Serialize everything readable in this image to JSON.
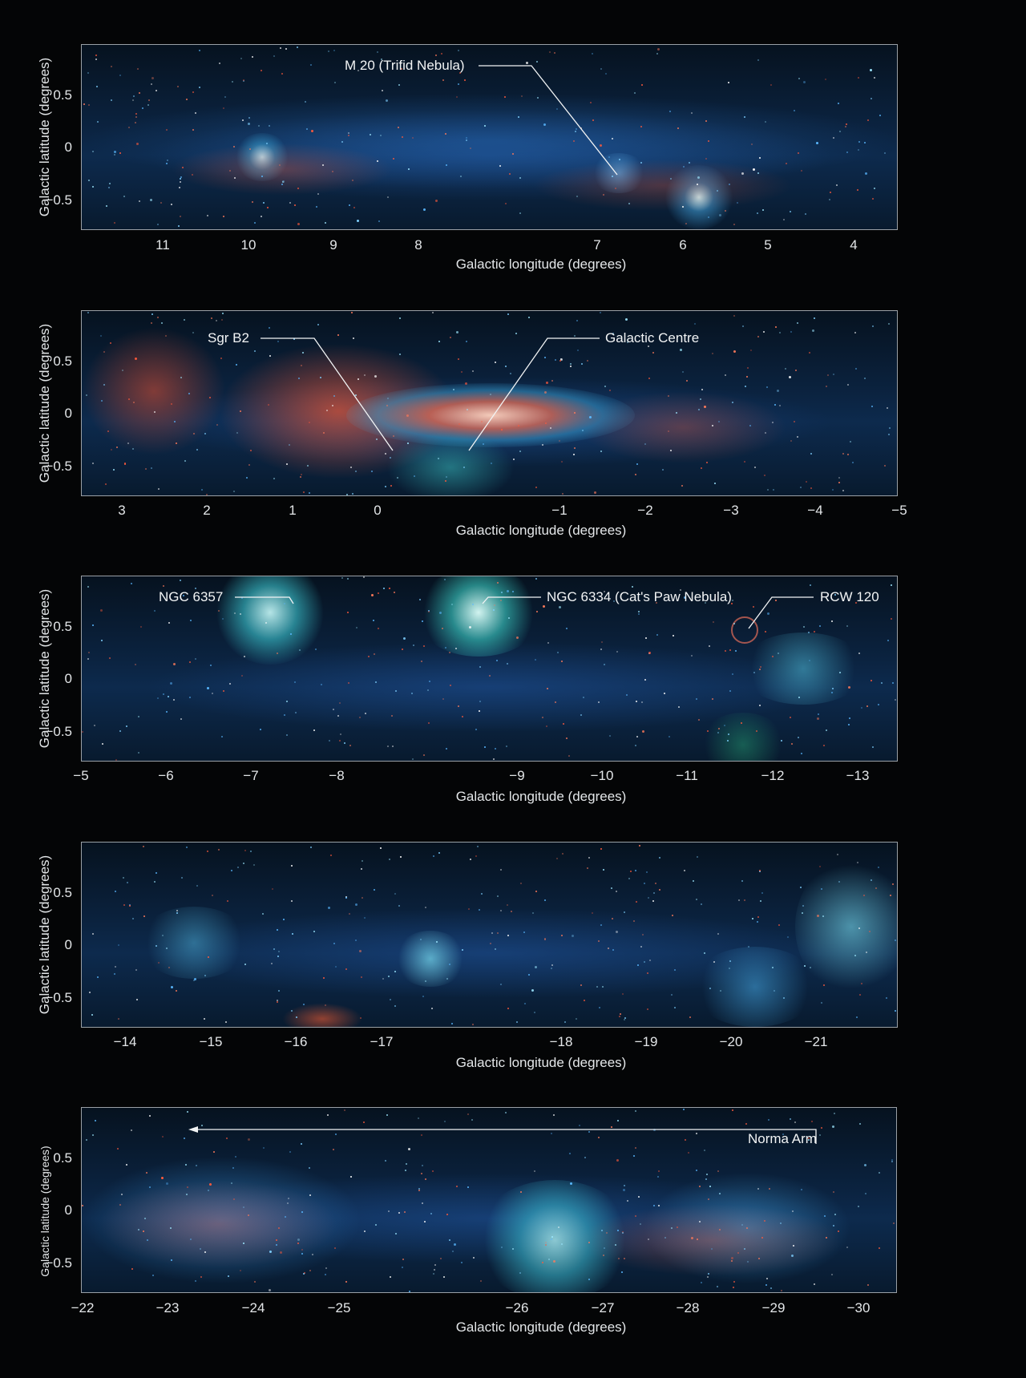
{
  "figure": {
    "x_axis_title": "Galactic longitude (degrees)",
    "y_axis_title": "Galactic latitude (degrees)",
    "y_ticks": [
      "0.5",
      "0",
      "−0.5"
    ]
  },
  "panels": [
    {
      "x_ticks": [
        "11",
        "10",
        "9",
        "8",
        "7",
        "6",
        "5",
        "4"
      ],
      "annotations": [
        {
          "label": "M 20 (Trifid Nebula)"
        }
      ]
    },
    {
      "x_ticks": [
        "3",
        "2",
        "1",
        "0",
        "−1",
        "−2",
        "−3",
        "−4",
        "−5"
      ],
      "annotations": [
        {
          "label": "Sgr B2"
        },
        {
          "label": "Galactic Centre"
        }
      ]
    },
    {
      "x_ticks": [
        "−5",
        "−6",
        "−7",
        "−8",
        "−9",
        "−10",
        "−11",
        "−12",
        "−13"
      ],
      "annotations": [
        {
          "label": "NGC 6357"
        },
        {
          "label": "NGC 6334 (Cat's Paw Nebula)"
        },
        {
          "label": "RCW 120"
        }
      ]
    },
    {
      "x_ticks": [
        "−14",
        "−15",
        "−16",
        "−17",
        "−18",
        "−19",
        "−20",
        "−21"
      ],
      "annotations": []
    },
    {
      "x_ticks": [
        "−22",
        "−23",
        "−24",
        "−25",
        "−26",
        "−27",
        "−28",
        "−29",
        "−30"
      ],
      "annotations": [
        {
          "label": "Norma Arm"
        }
      ]
    }
  ],
  "colors": {
    "background": "#040506",
    "frame": "#9aa0a6",
    "text": "#e3e6e8",
    "dust_red": "#e0553a",
    "gas_blue": "#1e5a9a",
    "gas_cyan": "#3fd0c8"
  }
}
